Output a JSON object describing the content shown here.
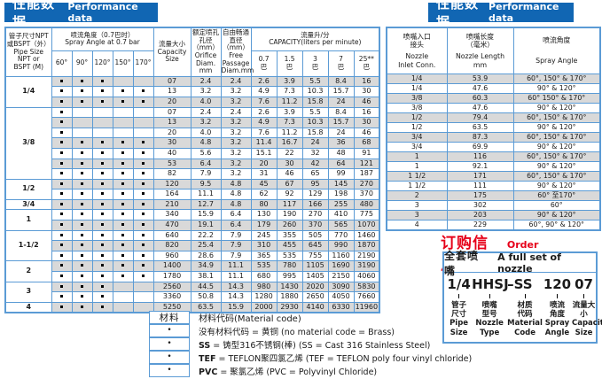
{
  "colors": {
    "bar_blue": "#1166b3",
    "border_blue": "#5b9bd5",
    "row_gray": "#d9d9d9",
    "red": "#e60019"
  },
  "left_panel": {
    "title_zh": "性能数据",
    "title_en": "Performance data",
    "table": {
      "pipe_header_zh": "管子尺寸NPT\n或BSPT（外）",
      "pipe_header_en": "Pipe Size\nNPT or\nBSPT (M)",
      "spray_group_zh": "喷流角度（0.7巴时）",
      "spray_group_en": "Spray Angle at 0.7 bar",
      "angle_cols": [
        "60°",
        "90°",
        "120°",
        "150°",
        "170°"
      ],
      "capacity_size_zh": "流量大小",
      "capacity_size_en": "Capacity\nSize",
      "orifice_zh": "额定喷孔\n孔径\n（mm）",
      "orifice_en": "Orifice\nDiam.\nmm",
      "free_zh": "自由畅通\n直径\n（mm）",
      "free_en": "Free\nPassage\nDiam.mm",
      "capacity_group_zh": "流量升/分",
      "capacity_group_en": "CAPACITY(liters per minute)",
      "bar_cols": [
        "0.7\n巴",
        "1.5\n巴",
        "3\n巴",
        "7\n巴",
        "25**\n巴"
      ],
      "groups": [
        {
          "pipe": "1/4",
          "rows": [
            {
              "angles": [
                1,
                1,
                1,
                0,
                0
              ],
              "size": "07",
              "orifice": "2.4",
              "free": "2.4",
              "cap": [
                "2.6",
                "3.9",
                "5.5",
                "8.4",
                "16"
              ]
            },
            {
              "angles": [
                1,
                1,
                1,
                1,
                1
              ],
              "size": "13",
              "orifice": "3.2",
              "free": "3.2",
              "cap": [
                "4.9",
                "7.3",
                "10.3",
                "15.7",
                "30"
              ]
            },
            {
              "angles": [
                1,
                1,
                1,
                1,
                1
              ],
              "size": "20",
              "orifice": "4.0",
              "free": "3.2",
              "cap": [
                "7.6",
                "11.2",
                "15.8",
                "24",
                "46"
              ]
            }
          ]
        },
        {
          "pipe": "3/8",
          "rows": [
            {
              "angles": [
                1,
                0,
                0,
                0,
                0
              ],
              "size": "07",
              "orifice": "2.4",
              "free": "2.4",
              "cap": [
                "2.6",
                "3.9",
                "5.5",
                "8.4",
                "16"
              ]
            },
            {
              "angles": [
                1,
                0,
                0,
                0,
                0
              ],
              "size": "13",
              "orifice": "3.2",
              "free": "3.2",
              "cap": [
                "4.9",
                "7.3",
                "10.3",
                "15.7",
                "30"
              ]
            },
            {
              "angles": [
                1,
                0,
                0,
                0,
                0
              ],
              "size": "20",
              "orifice": "4.0",
              "free": "3.2",
              "cap": [
                "7.6",
                "11.2",
                "15.8",
                "24",
                "46"
              ]
            },
            {
              "angles": [
                1,
                1,
                1,
                1,
                1
              ],
              "size": "30",
              "orifice": "4.8",
              "free": "3.2",
              "cap": [
                "11.4",
                "16.7",
                "24",
                "36",
                "68"
              ]
            },
            {
              "angles": [
                1,
                1,
                1,
                1,
                1
              ],
              "size": "40",
              "orifice": "5.6",
              "free": "3.2",
              "cap": [
                "15.1",
                "22",
                "32",
                "48",
                "91"
              ]
            },
            {
              "angles": [
                1,
                1,
                1,
                1,
                1
              ],
              "size": "53",
              "orifice": "6.4",
              "free": "3.2",
              "cap": [
                "20",
                "30",
                "42",
                "64",
                "121"
              ]
            },
            {
              "angles": [
                1,
                1,
                1,
                1,
                1
              ],
              "size": "82",
              "orifice": "7.9",
              "free": "3.2",
              "cap": [
                "31",
                "46",
                "65",
                "99",
                "187"
              ]
            }
          ]
        },
        {
          "pipe": "1/2",
          "rows": [
            {
              "angles": [
                1,
                1,
                1,
                1,
                1
              ],
              "size": "120",
              "orifice": "9.5",
              "free": "4.8",
              "cap": [
                "45",
                "67",
                "95",
                "145",
                "270"
              ]
            },
            {
              "angles": [
                1,
                1,
                1,
                1,
                1
              ],
              "size": "164",
              "orifice": "11.1",
              "free": "4.8",
              "cap": [
                "62",
                "92",
                "129",
                "198",
                "370"
              ]
            }
          ]
        },
        {
          "pipe": "3/4",
          "rows": [
            {
              "angles": [
                1,
                1,
                1,
                1,
                1
              ],
              "size": "210",
              "orifice": "12.7",
              "free": "4.8",
              "cap": [
                "80",
                "117",
                "166",
                "255",
                "480"
              ]
            }
          ]
        },
        {
          "pipe": "1",
          "rows": [
            {
              "angles": [
                1,
                1,
                1,
                1,
                1
              ],
              "size": "340",
              "orifice": "15.9",
              "free": "6.4",
              "cap": [
                "130",
                "190",
                "270",
                "410",
                "775"
              ]
            },
            {
              "angles": [
                1,
                1,
                1,
                1,
                1
              ],
              "size": "470",
              "orifice": "19.1",
              "free": "6.4",
              "cap": [
                "179",
                "260",
                "370",
                "565",
                "1070"
              ]
            }
          ]
        },
        {
          "pipe": "1-1/2",
          "rows": [
            {
              "angles": [
                1,
                1,
                1,
                1,
                1
              ],
              "size": "640",
              "orifice": "22.2",
              "free": "7.9",
              "cap": [
                "245",
                "355",
                "505",
                "770",
                "1460"
              ]
            },
            {
              "angles": [
                1,
                1,
                1,
                1,
                1
              ],
              "size": "820",
              "orifice": "25.4",
              "free": "7.9",
              "cap": [
                "310",
                "455",
                "645",
                "990",
                "1870"
              ]
            },
            {
              "angles": [
                1,
                1,
                1,
                1,
                1
              ],
              "size": "960",
              "orifice": "28.6",
              "free": "7.9",
              "cap": [
                "365",
                "535",
                "755",
                "1160",
                "2190"
              ]
            }
          ]
        },
        {
          "pipe": "2",
          "rows": [
            {
              "angles": [
                1,
                1,
                1,
                1,
                1
              ],
              "size": "1400",
              "orifice": "34.9",
              "free": "11.1",
              "cap": [
                "535",
                "780",
                "1105",
                "1690",
                "3190"
              ]
            },
            {
              "angles": [
                1,
                1,
                1,
                1,
                1
              ],
              "size": "1780",
              "orifice": "38.1",
              "free": "11.1",
              "cap": [
                "680",
                "995",
                "1405",
                "2150",
                "4060"
              ]
            }
          ]
        },
        {
          "pipe": "3",
          "rows": [
            {
              "angles": [
                1,
                1,
                1,
                0,
                0
              ],
              "size": "2560",
              "orifice": "44.5",
              "free": "14.3",
              "cap": [
                "980",
                "1430",
                "2020",
                "3090",
                "5830"
              ]
            },
            {
              "angles": [
                1,
                1,
                1,
                0,
                0
              ],
              "size": "3360",
              "orifice": "50.8",
              "free": "14.3",
              "cap": [
                "1280",
                "1880",
                "2650",
                "4050",
                "7660"
              ]
            }
          ]
        },
        {
          "pipe": "4",
          "rows": [
            {
              "angles": [
                1,
                1,
                1,
                0,
                0
              ],
              "size": "5250",
              "orifice": "63.5",
              "free": "15.9",
              "cap": [
                "2000",
                "2930",
                "4140",
                "6330",
                "11960"
              ]
            }
          ]
        }
      ]
    },
    "material": {
      "col_header": "材料",
      "title": "材料代码(Material code)",
      "items": [
        {
          "code": "",
          "text": "没有材料代码 = 黄铜  (no material code = Brass)"
        },
        {
          "code": "SS",
          "text": " = 铸型316不锈钢(棒) (SS = Cast 316 Stainless Steel)"
        },
        {
          "code": "TEF",
          "text": " = TEFLON聚四氯乙烯 (TEF = TEFLON poly four vinyl chloride)"
        },
        {
          "code": "PVC",
          "text": " = 聚氯乙烯 (PVC = Polyvinyl Chloride)"
        }
      ]
    }
  },
  "right_panel": {
    "title_zh": "性能数据",
    "title_en": "Performance data",
    "table": {
      "conn_header_zh": "喷嘴入口\n接头",
      "conn_header_en": "Nozzle\nInlet Conn.",
      "length_header_zh": "喷嘴长度\n（毫米）",
      "length_header_en": "Nozzle Length\nmm",
      "angle_header_zh": "喷流角度",
      "angle_header_en": "Spray Angle",
      "rows": [
        {
          "conn": "1/4",
          "length": "53.9",
          "angle": "60°, 150° & 170°"
        },
        {
          "conn": "1/4",
          "length": "47.6",
          "angle": "90° & 120°"
        },
        {
          "conn": "3/8",
          "length": "60.3",
          "angle": "60° 150° & 170°"
        },
        {
          "conn": "3/8",
          "length": "47.6",
          "angle": "90° & 120°"
        },
        {
          "conn": "1/2",
          "length": "79.4",
          "angle": "60°, 150° & 170°"
        },
        {
          "conn": "1/2",
          "length": "63.5",
          "angle": "90° & 120°"
        },
        {
          "conn": "3/4",
          "length": "87.3",
          "angle": "60°, 150° & 170°"
        },
        {
          "conn": "3/4",
          "length": "69.9",
          "angle": "90° & 120°"
        },
        {
          "conn": "1",
          "length": "116",
          "angle": "60°, 150° & 170°"
        },
        {
          "conn": "1",
          "length": "92.1",
          "angle": "90° & 120°"
        },
        {
          "conn": "1 1/2",
          "length": "171",
          "angle": "60°, 150° & 170°"
        },
        {
          "conn": "1 1/2",
          "length": "111",
          "angle": "90° & 120°"
        },
        {
          "conn": "2",
          "length": "175",
          "angle": "60° 至170°"
        },
        {
          "conn": "3",
          "length": "302",
          "angle": "60°"
        },
        {
          "conn": "3",
          "length": "203",
          "angle": "90° & 120°"
        },
        {
          "conn": "4",
          "length": "229",
          "angle": "60°, 90° & 120°"
        }
      ]
    },
    "order": {
      "title_zh": "订购信息",
      "title_en": "Order information",
      "set_zh": "全套喷嘴",
      "set_en": "A full set of nozzle",
      "parts": [
        {
          "code": "1/4",
          "zh": "管子\n尺寸",
          "en": "Pipe\nSize"
        },
        {
          "code": "HHSJ",
          "zh": "喷嘴\n型号",
          "en": "Nozzle\nType"
        },
        {
          "code": "–SS",
          "zh": "材质\n代码",
          "en": "Material\nCode"
        },
        {
          "code": "120",
          "zh": "喷流\n角度",
          "en": "Spray\nAngle"
        },
        {
          "code": "07",
          "zh": "流量大小",
          "en": "Capacity\nSize"
        }
      ]
    }
  }
}
